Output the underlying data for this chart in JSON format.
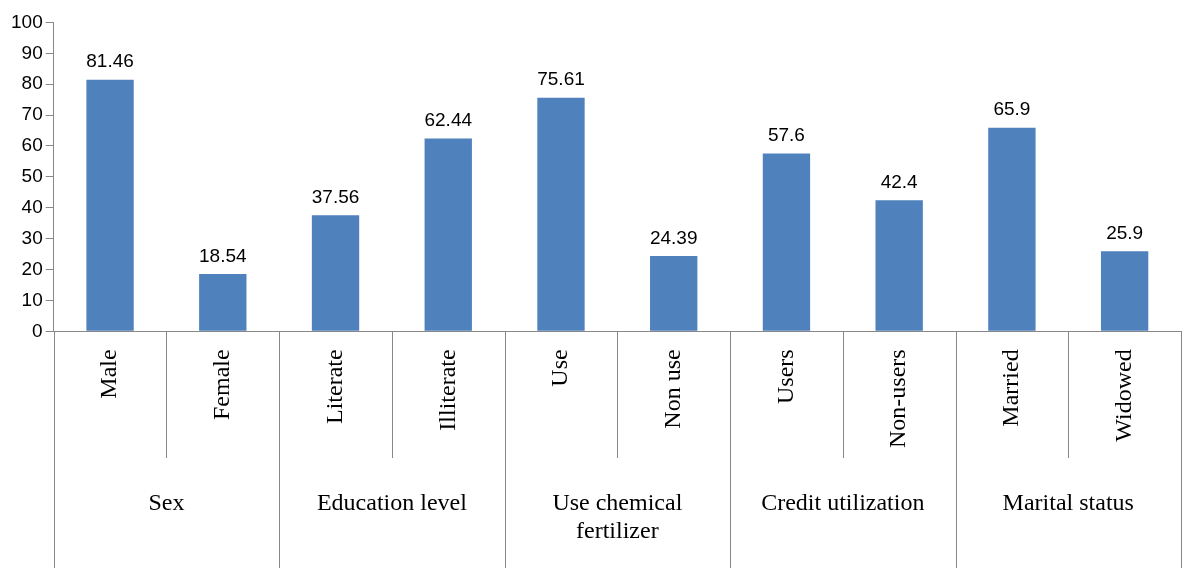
{
  "chart_data": {
    "type": "bar",
    "categories": [
      "Male",
      "Female",
      "Literate",
      "Illiterate",
      "Use",
      "Non use",
      "Users",
      "Non-users",
      "Married",
      "Widowed"
    ],
    "values": [
      81.46,
      18.54,
      37.56,
      62.44,
      75.61,
      24.39,
      57.6,
      42.4,
      65.9,
      25.9
    ],
    "color": "#4f81bd",
    "ylim": [
      0,
      100
    ],
    "yticks": [
      0,
      10,
      20,
      30,
      40,
      50,
      60,
      70,
      80,
      90,
      100
    ],
    "grid": false,
    "legend": false,
    "data_labels": true,
    "annotations": [
      "Sex",
      "Education level",
      "Use chemical fertilizer",
      "Credit utilization",
      "Marital status"
    ]
  }
}
